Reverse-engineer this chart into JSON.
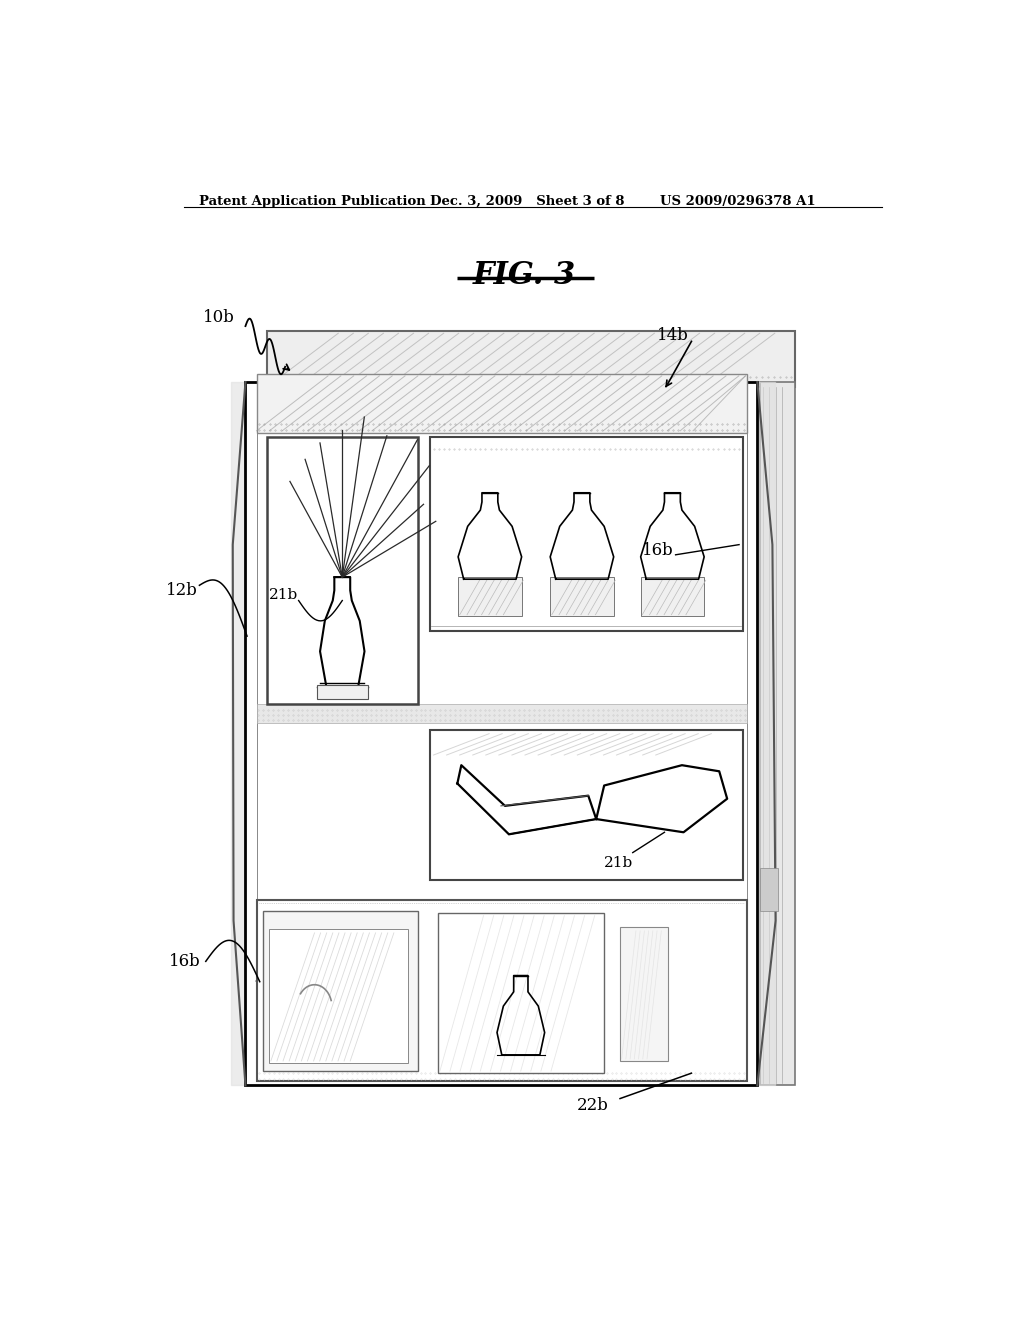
{
  "bg_color": "#ffffff",
  "title": "FIG. 3",
  "header_left": "Patent Application Publication",
  "header_mid": "Dec. 3, 2009   Sheet 3 of 8",
  "header_right": "US 2009/0296378 A1"
}
